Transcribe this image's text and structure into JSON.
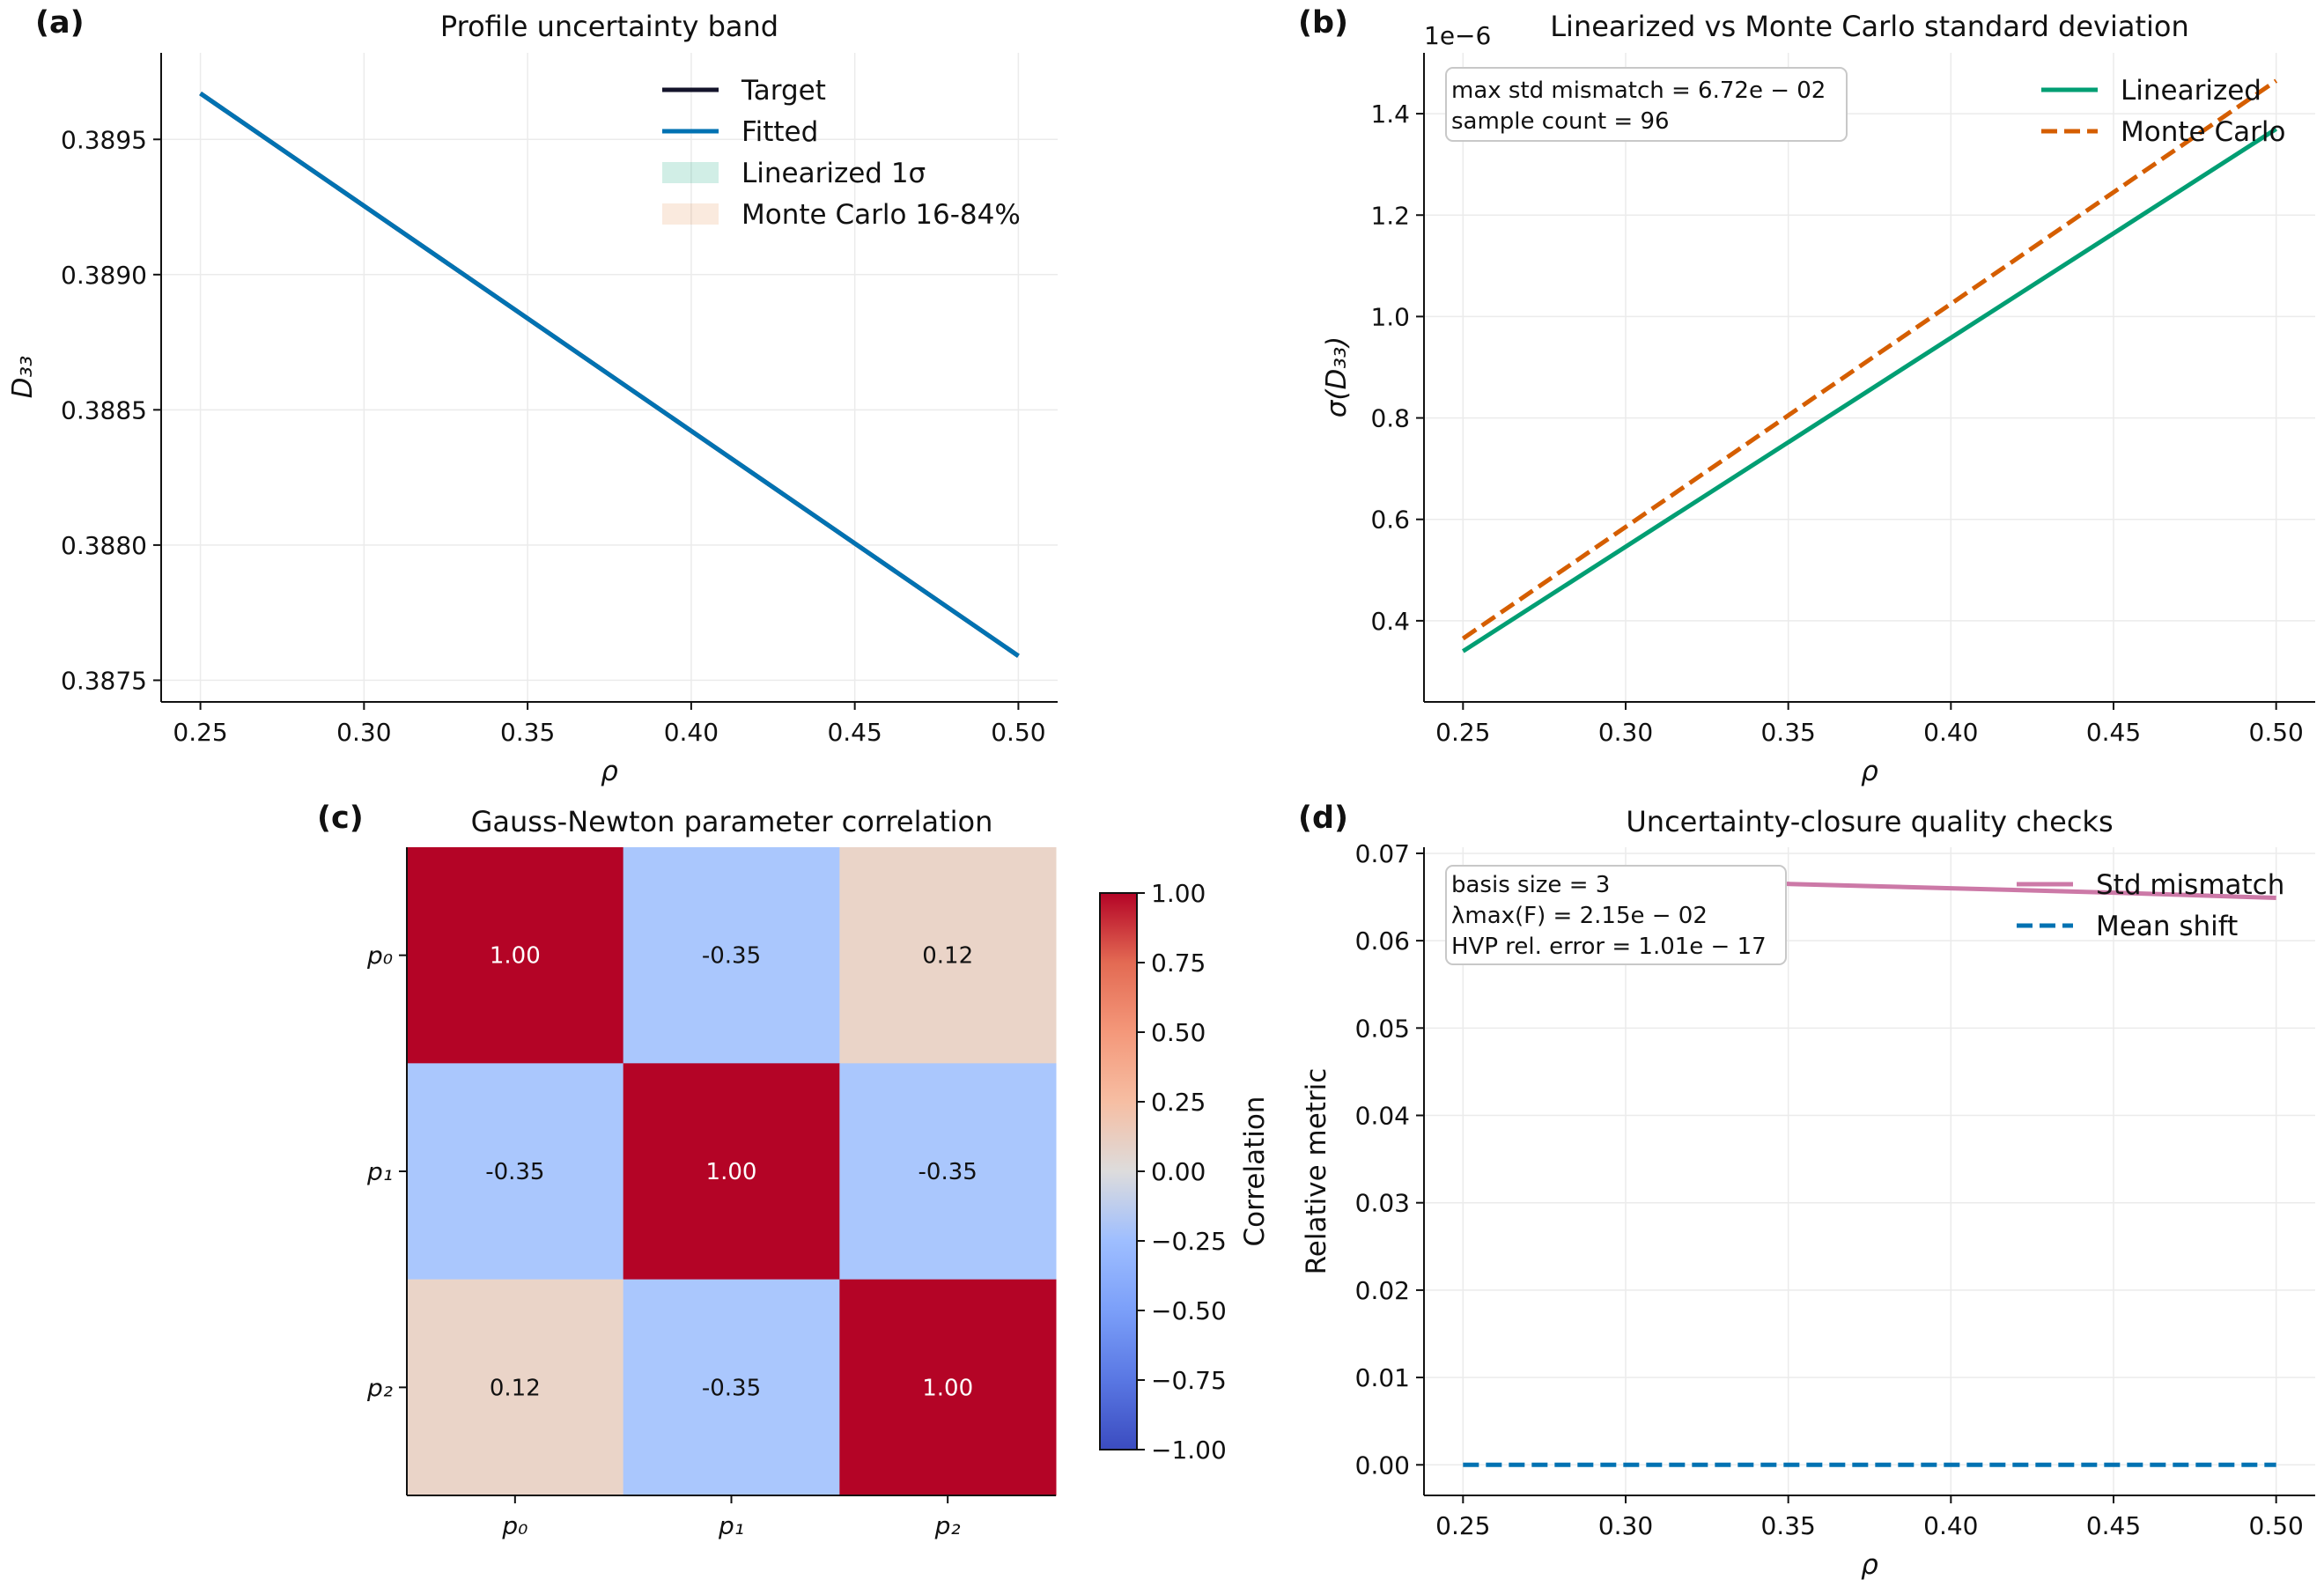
{
  "colors": {
    "target": "#14142b",
    "fitted": "#0072b2",
    "linearized": "#009e73",
    "monte_carlo": "#d55e00",
    "std_mismatch": "#cc79a7",
    "mean_shift": "#0072b2",
    "lin_band": "#009e73",
    "mc_band": "#d55e00",
    "grid": "#ebebeb",
    "heat_pos_strong": "#b40426",
    "heat_neg_mid": "#aac7fd",
    "heat_pos_weak": "#ead4c8"
  },
  "chart_data": [
    {
      "panel": "(a)",
      "type": "line",
      "title": "Profile uncertainty band",
      "xlabel": "ρ",
      "ylabel": "D₃₃",
      "xlim": [
        0.238,
        0.512
      ],
      "ylim": [
        0.38742,
        0.38982
      ],
      "xticks": [
        0.25,
        0.3,
        0.35,
        0.4,
        0.45,
        0.5
      ],
      "xtick_labels": [
        "0.25",
        "0.30",
        "0.35",
        "0.40",
        "0.45",
        "0.50"
      ],
      "yticks": [
        0.3875,
        0.388,
        0.3885,
        0.389,
        0.3895
      ],
      "ytick_labels": [
        "0.3875",
        "0.3880",
        "0.3885",
        "0.3890",
        "0.3895"
      ],
      "grid": true,
      "legend_position": "top-right",
      "series": [
        {
          "name": "Target",
          "style": "solid",
          "x": [
            0.25,
            0.5
          ],
          "y": [
            0.38967,
            0.38759
          ]
        },
        {
          "name": "Fitted",
          "style": "solid",
          "x": [
            0.25,
            0.5
          ],
          "y": [
            0.38967,
            0.38759
          ]
        }
      ],
      "bands": [
        {
          "name": "Linearized 1σ",
          "x": [
            0.25,
            0.5
          ],
          "lower": [
            0.38967,
            0.38759
          ],
          "upper": [
            0.38967,
            0.38759
          ]
        },
        {
          "name": "Monte Carlo 16-84%",
          "x": [
            0.25,
            0.5
          ],
          "lower": [
            0.38967,
            0.38759
          ],
          "upper": [
            0.38967,
            0.38759
          ]
        }
      ]
    },
    {
      "panel": "(b)",
      "type": "line",
      "title": "Linearized vs Monte Carlo standard deviation",
      "xlabel": "ρ",
      "ylabel": "σ(D₃₃)",
      "offset_text": "1e−6",
      "xlim": [
        0.238,
        0.512
      ],
      "ylim": [
        0.24,
        1.52
      ],
      "xticks": [
        0.25,
        0.3,
        0.35,
        0.4,
        0.45,
        0.5
      ],
      "xtick_labels": [
        "0.25",
        "0.30",
        "0.35",
        "0.40",
        "0.45",
        "0.50"
      ],
      "yticks": [
        0.4,
        0.6,
        0.8,
        1.0,
        1.2,
        1.4
      ],
      "ytick_labels": [
        "0.4",
        "0.6",
        "0.8",
        "1.0",
        "1.2",
        "1.4"
      ],
      "grid": true,
      "legend_position": "top-right",
      "annotation": [
        "max std mismatch = 6.72e − 02",
        "sample count = 96"
      ],
      "series": [
        {
          "name": "Linearized",
          "style": "solid",
          "x": [
            0.25,
            0.5
          ],
          "y": [
            0.34,
            1.37
          ]
        },
        {
          "name": "Monte Carlo",
          "style": "dashed",
          "x": [
            0.25,
            0.5
          ],
          "y": [
            0.365,
            1.465
          ]
        }
      ]
    },
    {
      "panel": "(c)",
      "type": "heatmap",
      "title": "Gauss-Newton parameter correlation",
      "row_labels": [
        "p₀",
        "p₁",
        "p₂"
      ],
      "col_labels": [
        "p₀",
        "p₁",
        "p₂"
      ],
      "values": [
        [
          1.0,
          -0.35,
          0.12
        ],
        [
          -0.35,
          1.0,
          -0.35
        ],
        [
          0.12,
          -0.35,
          1.0
        ]
      ],
      "cell_text": [
        [
          "1.00",
          "-0.35",
          "0.12"
        ],
        [
          "-0.35",
          "1.00",
          "-0.35"
        ],
        [
          "0.12",
          "-0.35",
          "1.00"
        ]
      ],
      "colorbar_label": "Correlation",
      "colorbar_range": [
        -1.0,
        1.0
      ],
      "colorbar_ticks": [
        1.0,
        0.75,
        0.5,
        0.25,
        0.0,
        -0.25,
        -0.5,
        -0.75,
        -1.0
      ],
      "colorbar_tick_labels": [
        "1.00",
        "0.75",
        "0.50",
        "0.25",
        "0.00",
        "−0.25",
        "−0.50",
        "−0.75",
        "−1.00"
      ]
    },
    {
      "panel": "(d)",
      "type": "line",
      "title": "Uncertainty-closure quality checks",
      "xlabel": "ρ",
      "ylabel": "Relative metric",
      "xlim": [
        0.238,
        0.512
      ],
      "ylim": [
        -0.0035,
        0.0707
      ],
      "xticks": [
        0.25,
        0.3,
        0.35,
        0.4,
        0.45,
        0.5
      ],
      "xtick_labels": [
        "0.25",
        "0.30",
        "0.35",
        "0.40",
        "0.45",
        "0.50"
      ],
      "yticks": [
        0.0,
        0.01,
        0.02,
        0.03,
        0.04,
        0.05,
        0.06,
        0.07
      ],
      "ytick_labels": [
        "0.00",
        "0.01",
        "0.02",
        "0.03",
        "0.04",
        "0.05",
        "0.06",
        "0.07"
      ],
      "grid": true,
      "legend_position": "top-right",
      "annotation": [
        "basis size = 3",
        "λmax(F) = 2.15e − 02",
        "HVP rel. error = 1.01e − 17"
      ],
      "series": [
        {
          "name": "Std mismatch",
          "style": "solid",
          "x": [
            0.25,
            0.3,
            0.35,
            0.4,
            0.45,
            0.5
          ],
          "y": [
            0.0672,
            0.0669,
            0.0665,
            0.066,
            0.0655,
            0.0649
          ]
        },
        {
          "name": "Mean shift",
          "style": "dashed",
          "x": [
            0.25,
            0.5
          ],
          "y": [
            0.0,
            0.0
          ]
        }
      ]
    }
  ]
}
